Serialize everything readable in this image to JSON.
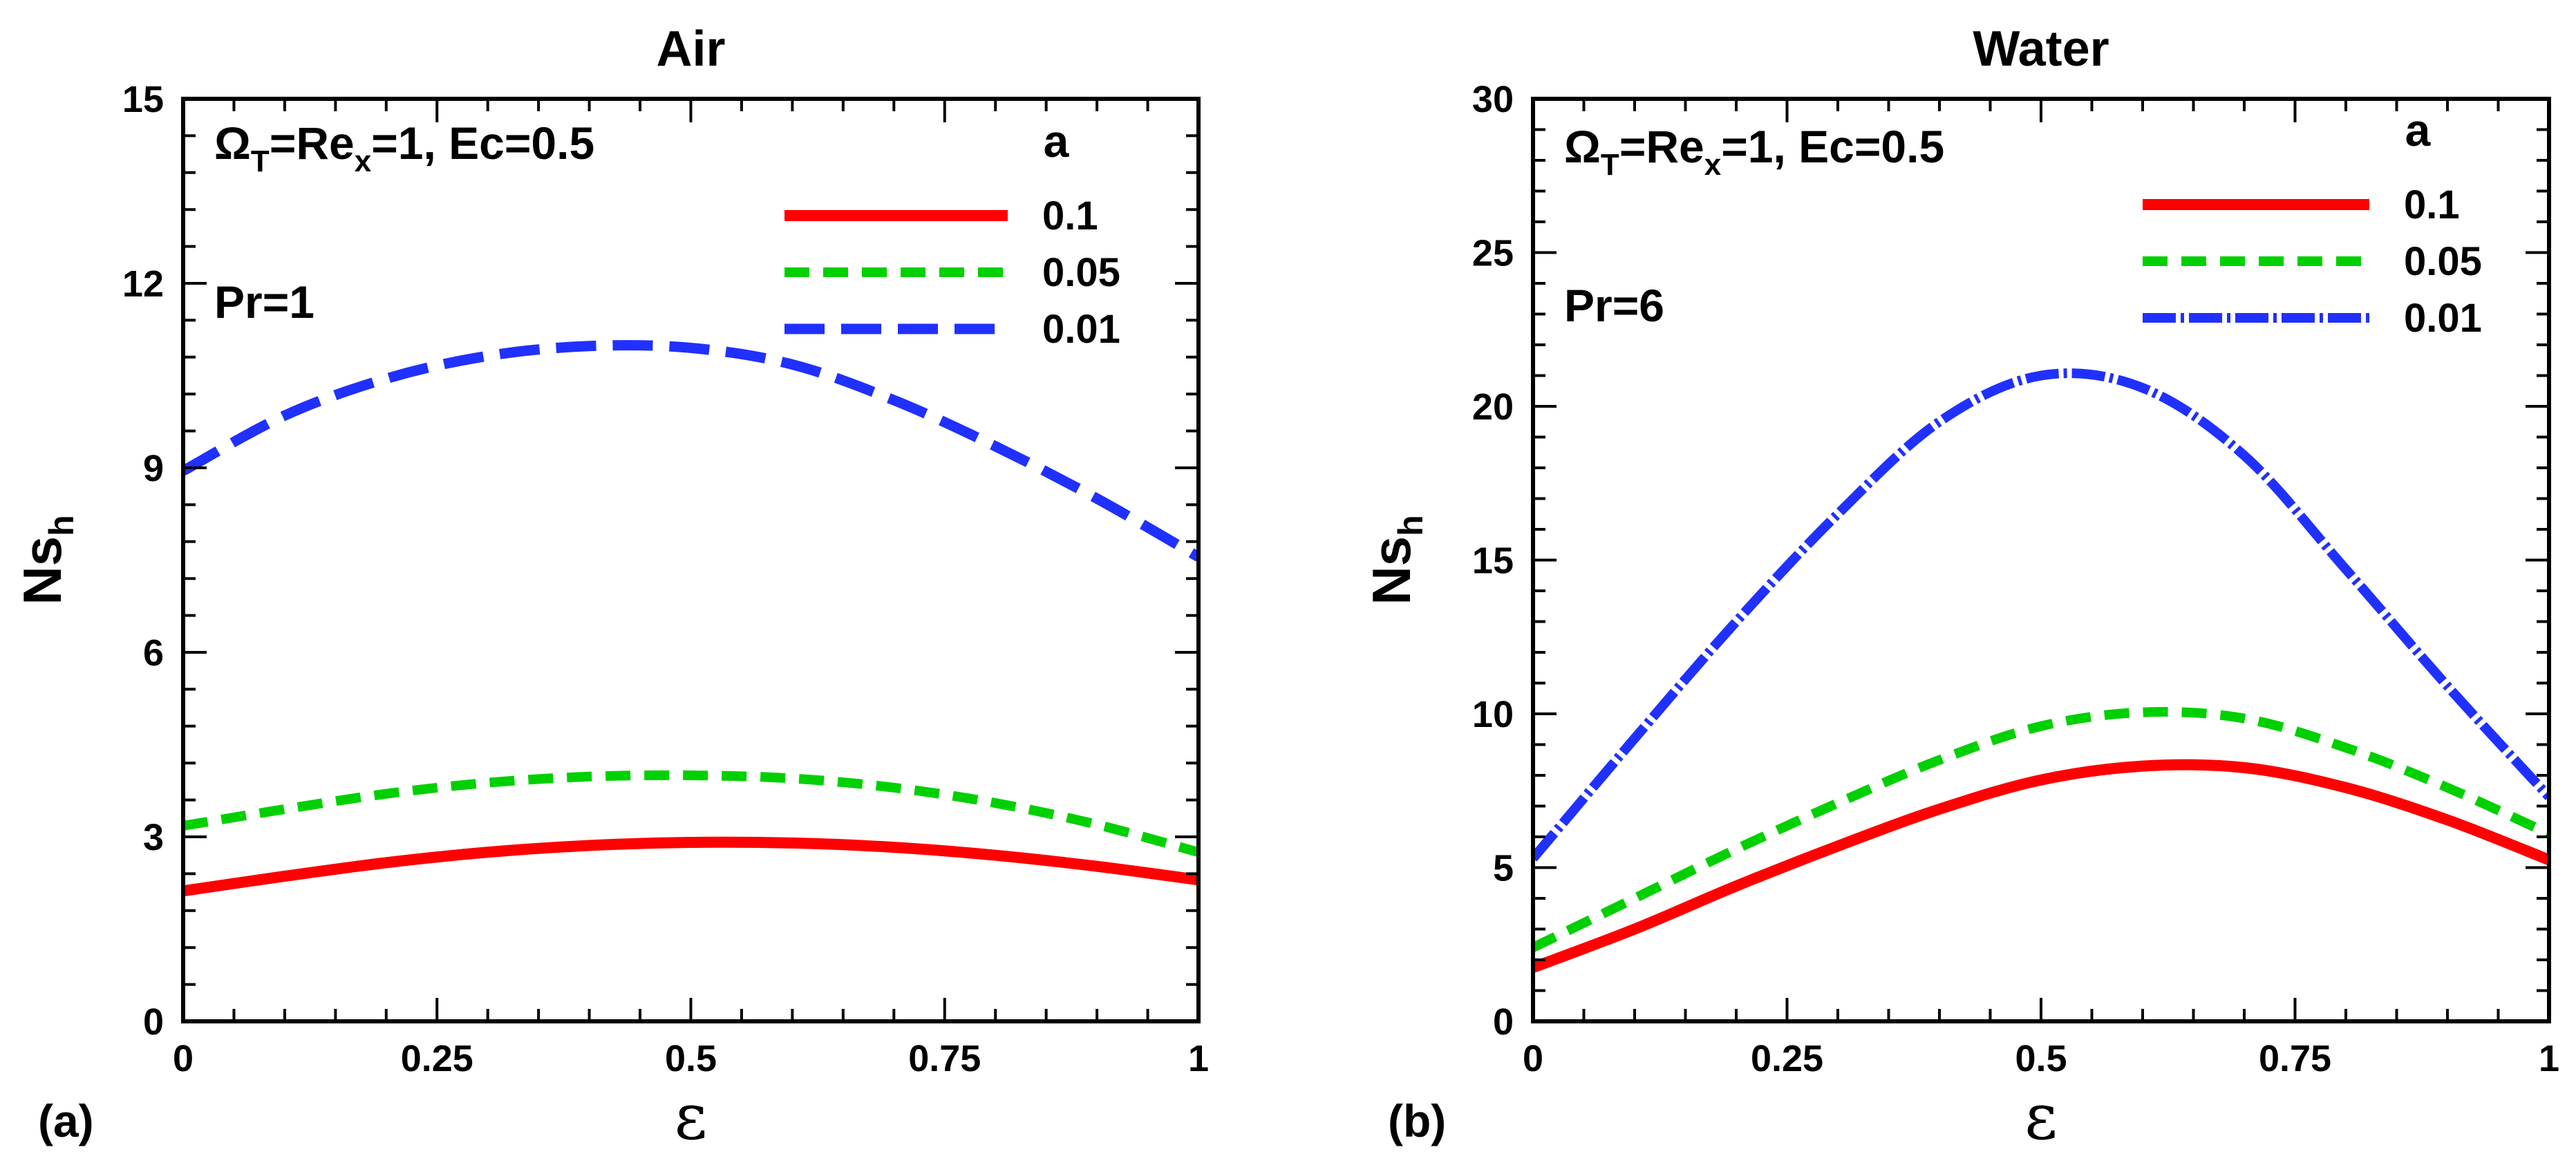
{
  "chart_data": [
    {
      "type": "line",
      "panel_label": "(a)",
      "title": "Air",
      "xlabel": "ε",
      "ylabel": {
        "main": "Ns",
        "sub": "h"
      },
      "xlim": [
        0,
        1
      ],
      "ylim": [
        0,
        15
      ],
      "xticks": [
        0,
        0.25,
        0.5,
        0.75,
        1
      ],
      "xtick_labels": [
        "0",
        "0.25",
        "0.5",
        "0.75",
        "1"
      ],
      "yticks": [
        0,
        3,
        6,
        9,
        12,
        15
      ],
      "ytick_labels": [
        "0",
        "3",
        "6",
        "9",
        "12",
        "15"
      ],
      "annotation": {
        "omega": "Ω",
        "omega_sub": "T",
        "eq_re": "=Re",
        "re_sub": "x",
        "rest": "=1, Ec=0.5"
      },
      "pr_label": "Pr=1",
      "legend_title": "a",
      "x": [
        0,
        0.1,
        0.2,
        0.3,
        0.4,
        0.5,
        0.6,
        0.7,
        0.8,
        0.9,
        1.0
      ],
      "series": [
        {
          "name": "0.1",
          "color": "#ff0000",
          "style": "solid",
          "values": [
            2.12,
            2.36,
            2.58,
            2.75,
            2.86,
            2.91,
            2.9,
            2.83,
            2.7,
            2.52,
            2.3
          ]
        },
        {
          "name": "0.05",
          "color": "#00d000",
          "style": "dash",
          "values": [
            3.18,
            3.45,
            3.7,
            3.88,
            3.98,
            4.0,
            3.95,
            3.8,
            3.55,
            3.2,
            2.75
          ]
        },
        {
          "name": "0.01",
          "color": "#2030ff",
          "style": "longdash",
          "values": [
            8.95,
            9.85,
            10.45,
            10.82,
            10.98,
            10.95,
            10.68,
            10.1,
            9.35,
            8.5,
            7.55
          ]
        }
      ]
    },
    {
      "type": "line",
      "panel_label": "(b)",
      "title": "Water",
      "xlabel": "ε",
      "ylabel": {
        "main": "Ns",
        "sub": "h"
      },
      "xlim": [
        0,
        1
      ],
      "ylim": [
        0,
        30
      ],
      "xticks": [
        0,
        0.25,
        0.5,
        0.75,
        1
      ],
      "xtick_labels": [
        "0",
        "0.25",
        "0.5",
        "0.75",
        "1"
      ],
      "yticks": [
        0,
        5,
        10,
        15,
        20,
        25,
        30
      ],
      "ytick_labels": [
        "0",
        "5",
        "10",
        "15",
        "20",
        "25",
        "30"
      ],
      "annotation": {
        "omega": "Ω",
        "omega_sub": "T",
        "eq_re": "=Re",
        "re_sub": "x",
        "rest": "=1, Ec=0.5"
      },
      "pr_label": "Pr=6",
      "legend_title": "a",
      "x": [
        0,
        0.1,
        0.2,
        0.3,
        0.4,
        0.5,
        0.6,
        0.7,
        0.8,
        0.9,
        1.0
      ],
      "series": [
        {
          "name": "0.1",
          "color": "#ff0000",
          "style": "solid",
          "values": [
            1.75,
            3.0,
            4.4,
            5.7,
            6.9,
            7.85,
            8.3,
            8.25,
            7.6,
            6.55,
            5.25
          ]
        },
        {
          "name": "0.05",
          "color": "#00d000",
          "style": "dash",
          "values": [
            2.4,
            4.0,
            5.6,
            7.1,
            8.5,
            9.6,
            10.05,
            9.85,
            8.9,
            7.6,
            6.1
          ]
        },
        {
          "name": "0.01",
          "color": "#2030ff",
          "style": "dashdot",
          "values": [
            5.3,
            9.2,
            13.0,
            16.5,
            19.5,
            21.0,
            20.6,
            18.4,
            14.7,
            10.9,
            7.3
          ]
        }
      ]
    }
  ]
}
